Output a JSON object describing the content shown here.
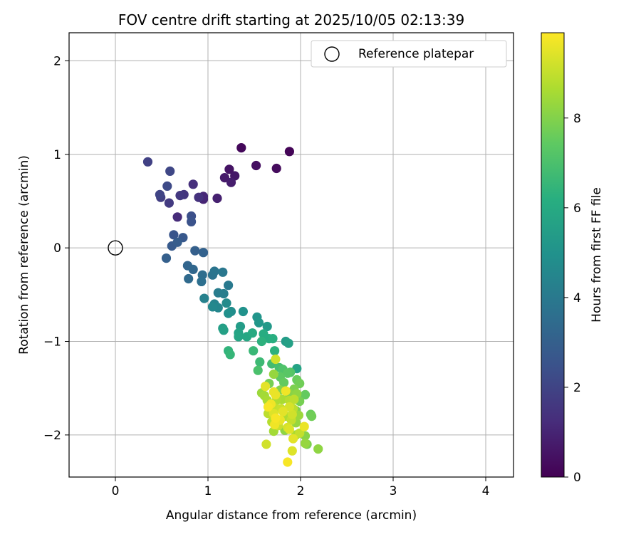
{
  "chart_data": {
    "type": "scatter",
    "title": "FOV centre drift starting at 2025/10/05 02:13:39",
    "xlabel": "Angular distance from reference (arcmin)",
    "ylabel": "Rotation from reference (arcmin)",
    "xlim": [
      -0.5,
      4.3
    ],
    "ylim": [
      -2.45,
      2.3
    ],
    "xticks": [
      0,
      1,
      2,
      3,
      4
    ],
    "yticks": [
      -2,
      -1,
      0,
      1,
      2
    ],
    "xtick_labels": [
      "0",
      "1",
      "2",
      "3",
      "4"
    ],
    "ytick_labels": [
      "−2",
      "−1",
      "0",
      "1",
      "2"
    ],
    "grid": true,
    "legend": {
      "position": "top-right",
      "label": "Reference platepar"
    },
    "reference_point": {
      "x": 0,
      "y": 0
    },
    "colorbar": {
      "label": "Hours from first FF file",
      "range": [
        0,
        9.9
      ],
      "ticks": [
        0,
        2,
        4,
        6,
        8
      ],
      "tick_labels": [
        "0",
        "2",
        "4",
        "6",
        "8"
      ],
      "colormap": "viridis"
    },
    "points": [
      {
        "x": 1.88,
        "y": 1.03,
        "c": 0.1
      },
      {
        "x": 1.36,
        "y": 1.07,
        "c": 0.2
      },
      {
        "x": 1.74,
        "y": 0.85,
        "c": 0.3
      },
      {
        "x": 1.52,
        "y": 0.88,
        "c": 0.4
      },
      {
        "x": 1.23,
        "y": 0.84,
        "c": 0.5
      },
      {
        "x": 1.29,
        "y": 0.77,
        "c": 0.6
      },
      {
        "x": 1.18,
        "y": 0.75,
        "c": 0.7
      },
      {
        "x": 1.25,
        "y": 0.7,
        "c": 0.8
      },
      {
        "x": 1.1,
        "y": 0.53,
        "c": 0.9
      },
      {
        "x": 0.95,
        "y": 0.52,
        "c": 1.0
      },
      {
        "x": 0.95,
        "y": 0.55,
        "c": 1.1
      },
      {
        "x": 0.67,
        "y": 0.33,
        "c": 1.2
      },
      {
        "x": 0.84,
        "y": 0.68,
        "c": 1.3
      },
      {
        "x": 0.9,
        "y": 0.54,
        "c": 1.4
      },
      {
        "x": 0.74,
        "y": 0.57,
        "c": 1.5
      },
      {
        "x": 0.7,
        "y": 0.56,
        "c": 1.6
      },
      {
        "x": 0.58,
        "y": 0.48,
        "c": 1.7
      },
      {
        "x": 0.49,
        "y": 0.54,
        "c": 1.8
      },
      {
        "x": 0.35,
        "y": 0.92,
        "c": 1.9
      },
      {
        "x": 0.48,
        "y": 0.57,
        "c": 2.0
      },
      {
        "x": 0.59,
        "y": 0.82,
        "c": 2.1
      },
      {
        "x": 0.56,
        "y": 0.66,
        "c": 2.2
      },
      {
        "x": 0.82,
        "y": 0.34,
        "c": 2.4
      },
      {
        "x": 0.82,
        "y": 0.28,
        "c": 2.5
      },
      {
        "x": 0.63,
        "y": 0.14,
        "c": 2.6
      },
      {
        "x": 0.73,
        "y": 0.11,
        "c": 2.7
      },
      {
        "x": 0.61,
        "y": 0.02,
        "c": 2.8
      },
      {
        "x": 0.67,
        "y": 0.06,
        "c": 2.9
      },
      {
        "x": 0.55,
        "y": -0.11,
        "c": 3.0
      },
      {
        "x": 0.86,
        "y": -0.03,
        "c": 3.0
      },
      {
        "x": 0.95,
        "y": -0.05,
        "c": 3.1
      },
      {
        "x": 0.78,
        "y": -0.19,
        "c": 3.2
      },
      {
        "x": 0.84,
        "y": -0.23,
        "c": 3.3
      },
      {
        "x": 0.79,
        "y": -0.33,
        "c": 3.4
      },
      {
        "x": 0.94,
        "y": -0.29,
        "c": 3.5
      },
      {
        "x": 0.93,
        "y": -0.36,
        "c": 3.6
      },
      {
        "x": 1.05,
        "y": -0.29,
        "c": 3.7
      },
      {
        "x": 1.07,
        "y": -0.25,
        "c": 3.8
      },
      {
        "x": 1.16,
        "y": -0.26,
        "c": 3.9
      },
      {
        "x": 1.22,
        "y": -0.4,
        "c": 4.0
      },
      {
        "x": 1.11,
        "y": -0.48,
        "c": 4.1
      },
      {
        "x": 1.17,
        "y": -0.49,
        "c": 4.2
      },
      {
        "x": 0.96,
        "y": -0.54,
        "c": 4.3
      },
      {
        "x": 1.07,
        "y": -0.6,
        "c": 4.4
      },
      {
        "x": 1.11,
        "y": -0.64,
        "c": 4.5
      },
      {
        "x": 1.05,
        "y": -0.63,
        "c": 4.6
      },
      {
        "x": 1.2,
        "y": -0.59,
        "c": 4.7
      },
      {
        "x": 1.25,
        "y": -0.68,
        "c": 4.8
      },
      {
        "x": 1.22,
        "y": -0.7,
        "c": 4.9
      },
      {
        "x": 1.38,
        "y": -0.68,
        "c": 5.0
      },
      {
        "x": 1.53,
        "y": -0.74,
        "c": 5.1
      },
      {
        "x": 1.55,
        "y": -0.8,
        "c": 5.2
      },
      {
        "x": 1.64,
        "y": -0.84,
        "c": 5.3
      },
      {
        "x": 1.35,
        "y": -0.84,
        "c": 5.4
      },
      {
        "x": 1.16,
        "y": -0.86,
        "c": 5.5
      },
      {
        "x": 1.17,
        "y": -0.88,
        "c": 5.6
      },
      {
        "x": 1.33,
        "y": -0.91,
        "c": 5.7
      },
      {
        "x": 1.33,
        "y": -0.95,
        "c": 5.8
      },
      {
        "x": 1.42,
        "y": -0.95,
        "c": 5.9
      },
      {
        "x": 1.48,
        "y": -0.91,
        "c": 6.0
      },
      {
        "x": 1.6,
        "y": -0.92,
        "c": 6.1
      },
      {
        "x": 1.66,
        "y": -0.97,
        "c": 6.1
      },
      {
        "x": 1.7,
        "y": -0.97,
        "c": 6.2
      },
      {
        "x": 1.58,
        "y": -1.0,
        "c": 6.3
      },
      {
        "x": 1.84,
        "y": -1.0,
        "c": 5.4
      },
      {
        "x": 1.87,
        "y": -1.02,
        "c": 5.6
      },
      {
        "x": 1.96,
        "y": -1.29,
        "c": 5.7
      },
      {
        "x": 1.72,
        "y": -1.1,
        "c": 6.3
      },
      {
        "x": 1.22,
        "y": -1.1,
        "c": 6.4
      },
      {
        "x": 1.24,
        "y": -1.14,
        "c": 6.5
      },
      {
        "x": 1.49,
        "y": -1.1,
        "c": 6.6
      },
      {
        "x": 1.56,
        "y": -1.22,
        "c": 6.7
      },
      {
        "x": 1.69,
        "y": -1.24,
        "c": 6.8
      },
      {
        "x": 1.77,
        "y": -1.28,
        "c": 6.9
      },
      {
        "x": 1.54,
        "y": -1.31,
        "c": 7.0
      },
      {
        "x": 1.81,
        "y": -1.3,
        "c": 7.1
      },
      {
        "x": 1.89,
        "y": -1.33,
        "c": 7.2
      },
      {
        "x": 1.86,
        "y": -1.34,
        "c": 7.3
      },
      {
        "x": 1.73,
        "y": -1.19,
        "c": 9.2
      },
      {
        "x": 1.71,
        "y": -1.35,
        "c": 8.3
      },
      {
        "x": 1.78,
        "y": -1.38,
        "c": 7.4
      },
      {
        "x": 1.82,
        "y": -1.44,
        "c": 7.5
      },
      {
        "x": 1.96,
        "y": -1.41,
        "c": 7.6
      },
      {
        "x": 1.99,
        "y": -1.45,
        "c": 7.7
      },
      {
        "x": 1.66,
        "y": -1.45,
        "c": 7.8
      },
      {
        "x": 1.62,
        "y": -1.48,
        "c": 9.5
      },
      {
        "x": 1.93,
        "y": -1.51,
        "c": 7.9
      },
      {
        "x": 1.78,
        "y": -1.52,
        "c": 8.0
      },
      {
        "x": 1.87,
        "y": -1.55,
        "c": 8.1
      },
      {
        "x": 1.96,
        "y": -1.56,
        "c": 8.2
      },
      {
        "x": 2.05,
        "y": -1.57,
        "c": 7.5
      },
      {
        "x": 1.58,
        "y": -1.55,
        "c": 8.4
      },
      {
        "x": 1.61,
        "y": -1.58,
        "c": 8.5
      },
      {
        "x": 1.71,
        "y": -1.54,
        "c": 9.6
      },
      {
        "x": 1.73,
        "y": -1.57,
        "c": 9.6
      },
      {
        "x": 1.84,
        "y": -1.53,
        "c": 9.7
      },
      {
        "x": 1.64,
        "y": -1.63,
        "c": 8.6
      },
      {
        "x": 1.68,
        "y": -1.67,
        "c": 9.7
      },
      {
        "x": 1.74,
        "y": -1.63,
        "c": 8.7
      },
      {
        "x": 1.8,
        "y": -1.62,
        "c": 8.6
      },
      {
        "x": 1.88,
        "y": -1.63,
        "c": 8.8
      },
      {
        "x": 1.93,
        "y": -1.62,
        "c": 8.9
      },
      {
        "x": 1.99,
        "y": -1.64,
        "c": 7.8
      },
      {
        "x": 1.65,
        "y": -1.7,
        "c": 9.8
      },
      {
        "x": 1.72,
        "y": -1.71,
        "c": 9.0
      },
      {
        "x": 1.79,
        "y": -1.72,
        "c": 9.1
      },
      {
        "x": 1.88,
        "y": -1.7,
        "c": 9.3
      },
      {
        "x": 1.92,
        "y": -1.72,
        "c": 8.9
      },
      {
        "x": 1.95,
        "y": -1.74,
        "c": 8.0
      },
      {
        "x": 1.65,
        "y": -1.77,
        "c": 8.9
      },
      {
        "x": 1.71,
        "y": -1.77,
        "c": 9.4
      },
      {
        "x": 1.81,
        "y": -1.75,
        "c": 9.5
      },
      {
        "x": 1.84,
        "y": -1.8,
        "c": 8.7
      },
      {
        "x": 1.91,
        "y": -1.78,
        "c": 9.2
      },
      {
        "x": 1.98,
        "y": -1.79,
        "c": 8.4
      },
      {
        "x": 2.11,
        "y": -1.78,
        "c": 7.6
      },
      {
        "x": 2.12,
        "y": -1.8,
        "c": 7.7
      },
      {
        "x": 1.73,
        "y": -1.82,
        "c": 9.8
      },
      {
        "x": 1.78,
        "y": -1.84,
        "c": 9.6
      },
      {
        "x": 1.69,
        "y": -1.86,
        "c": 8.8
      },
      {
        "x": 1.9,
        "y": -1.84,
        "c": 9.0
      },
      {
        "x": 1.95,
        "y": -1.87,
        "c": 8.3
      },
      {
        "x": 1.72,
        "y": -1.89,
        "c": 9.7
      },
      {
        "x": 1.76,
        "y": -1.9,
        "c": 9.1
      },
      {
        "x": 1.86,
        "y": -1.92,
        "c": 9.3
      },
      {
        "x": 2.04,
        "y": -1.91,
        "c": 9.6
      },
      {
        "x": 1.71,
        "y": -1.96,
        "c": 8.5
      },
      {
        "x": 1.83,
        "y": -1.95,
        "c": 8.2
      },
      {
        "x": 1.88,
        "y": -1.94,
        "c": 9.4
      },
      {
        "x": 1.95,
        "y": -2.0,
        "c": 8.6
      },
      {
        "x": 1.99,
        "y": -1.98,
        "c": 9.0
      },
      {
        "x": 2.05,
        "y": -2.01,
        "c": 8.1
      },
      {
        "x": 1.92,
        "y": -2.04,
        "c": 9.5
      },
      {
        "x": 2.05,
        "y": -2.09,
        "c": 8.3
      },
      {
        "x": 1.63,
        "y": -2.1,
        "c": 9.2
      },
      {
        "x": 2.07,
        "y": -2.1,
        "c": 7.9
      },
      {
        "x": 1.91,
        "y": -2.17,
        "c": 9.4
      },
      {
        "x": 2.19,
        "y": -2.15,
        "c": 8.2
      },
      {
        "x": 1.86,
        "y": -2.29,
        "c": 9.8
      }
    ]
  }
}
